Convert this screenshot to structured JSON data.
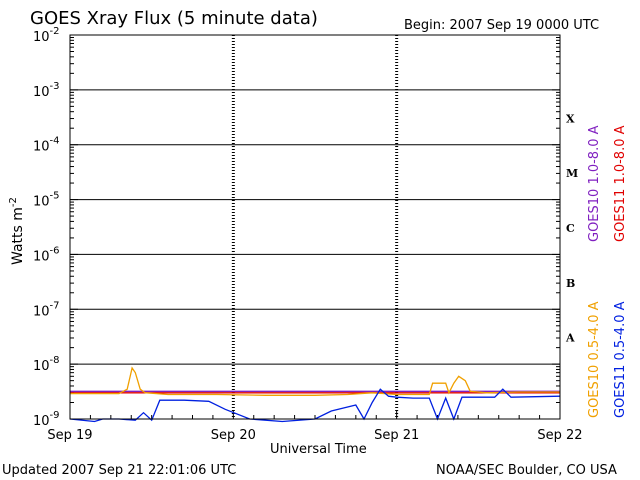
{
  "chart_data": {
    "type": "line",
    "title": "GOES Xray Flux (5 minute data)",
    "begin_label": "Begin:  2007 Sep 19 0000 UTC",
    "xlabel": "Universal Time",
    "ylabel_base": "Watts m",
    "ylabel_exp": "-2",
    "yscale": "log",
    "ylim": [
      1e-09,
      0.01
    ],
    "x_days_range": [
      0,
      3
    ],
    "x_ticks": [
      {
        "label": "Sep 19",
        "day": 0
      },
      {
        "label": "Sep 20",
        "day": 1
      },
      {
        "label": "Sep 21",
        "day": 2
      },
      {
        "label": "Sep 22",
        "day": 3
      }
    ],
    "y_ticks": [
      {
        "exp": -2,
        "base": "10",
        "sup": "-2"
      },
      {
        "exp": -3,
        "base": "10",
        "sup": "-3"
      },
      {
        "exp": -4,
        "base": "10",
        "sup": "-4"
      },
      {
        "exp": -5,
        "base": "10",
        "sup": "-5"
      },
      {
        "exp": -6,
        "base": "10",
        "sup": "-6"
      },
      {
        "exp": -7,
        "base": "10",
        "sup": "-7"
      },
      {
        "exp": -8,
        "base": "10",
        "sup": "-8"
      },
      {
        "exp": -9,
        "base": "10",
        "sup": "-9"
      }
    ],
    "flare_classes": [
      {
        "label": "X",
        "exp": -4
      },
      {
        "label": "M",
        "exp": -5
      },
      {
        "label": "C",
        "exp": -6
      },
      {
        "label": "B",
        "exp": -7
      },
      {
        "label": "A",
        "exp": -8
      }
    ],
    "grid": true,
    "series": [
      {
        "name": "GOES10 1.0-8.0 A",
        "color": "#8020c0",
        "points": [
          [
            0,
            3.2e-09
          ],
          [
            3,
            3.2e-09
          ]
        ]
      },
      {
        "name": "GOES11 1.0-8.0 A",
        "color": "#e00000",
        "points": [
          [
            0,
            3e-09
          ],
          [
            3,
            3e-09
          ]
        ]
      },
      {
        "name": "GOES10 0.5-4.0 A",
        "color": "#f0a000",
        "points": [
          [
            0,
            2.9e-09
          ],
          [
            0.3,
            2.9e-09
          ],
          [
            0.35,
            3.5e-09
          ],
          [
            0.38,
            8.5e-09
          ],
          [
            0.4,
            7e-09
          ],
          [
            0.43,
            3.5e-09
          ],
          [
            0.46,
            3e-09
          ],
          [
            0.6,
            2.8e-09
          ],
          [
            0.9,
            2.8e-09
          ],
          [
            1.2,
            2.7e-09
          ],
          [
            1.5,
            2.7e-09
          ],
          [
            1.7,
            2.8e-09
          ],
          [
            1.85,
            3e-09
          ],
          [
            2.0,
            2.8e-09
          ],
          [
            2.2,
            2.8e-09
          ],
          [
            2.22,
            4.5e-09
          ],
          [
            2.3,
            4.5e-09
          ],
          [
            2.32,
            3e-09
          ],
          [
            2.35,
            4.5e-09
          ],
          [
            2.38,
            6e-09
          ],
          [
            2.42,
            5e-09
          ],
          [
            2.45,
            3.2e-09
          ],
          [
            2.55,
            3e-09
          ],
          [
            2.75,
            3.1e-09
          ],
          [
            3,
            3.1e-09
          ]
        ]
      },
      {
        "name": "GOES11 0.5-4.0 A",
        "color": "#0020e0",
        "points": [
          [
            0,
            1e-09
          ],
          [
            0.15,
            9e-10
          ],
          [
            0.2,
            1e-09
          ],
          [
            0.3,
            1e-09
          ],
          [
            0.4,
            9.5e-10
          ],
          [
            0.45,
            1.3e-09
          ],
          [
            0.5,
            9.5e-10
          ],
          [
            0.55,
            2.2e-09
          ],
          [
            0.7,
            2.2e-09
          ],
          [
            0.85,
            2.1e-09
          ],
          [
            0.95,
            1.5e-09
          ],
          [
            1.1,
            1e-09
          ],
          [
            1.3,
            9e-10
          ],
          [
            1.5,
            1e-09
          ],
          [
            1.6,
            1.4e-09
          ],
          [
            1.75,
            1.8e-09
          ],
          [
            1.8,
            1e-09
          ],
          [
            1.85,
            2e-09
          ],
          [
            1.9,
            3.5e-09
          ],
          [
            1.95,
            2.6e-09
          ],
          [
            2.0,
            2.5e-09
          ],
          [
            2.1,
            2.4e-09
          ],
          [
            2.2,
            2.4e-09
          ],
          [
            2.25,
            1e-09
          ],
          [
            2.3,
            2.4e-09
          ],
          [
            2.35,
            1e-09
          ],
          [
            2.4,
            2.5e-09
          ],
          [
            2.6,
            2.5e-09
          ],
          [
            2.65,
            3.5e-09
          ],
          [
            2.7,
            2.5e-09
          ],
          [
            3,
            2.6e-09
          ]
        ]
      }
    ]
  },
  "footer": {
    "updated": "Updated 2007 Sep 21 22:01:06 UTC",
    "source": "NOAA/SEC Boulder, CO USA"
  }
}
